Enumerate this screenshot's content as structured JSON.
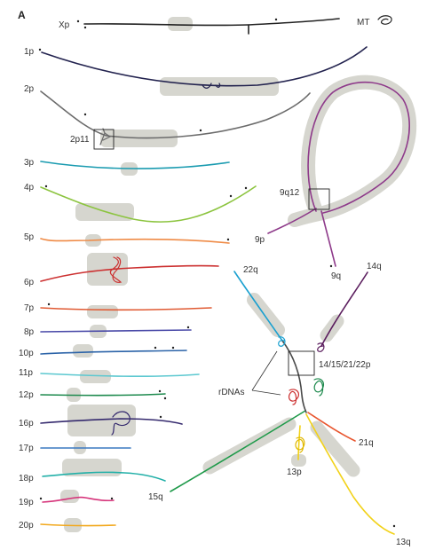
{
  "panel_label": "A",
  "colors": {
    "highlight": "#d6d6cf",
    "X": "#222222",
    "1": "#23234f",
    "2": "#6b6b6b",
    "3": "#1a9bb0",
    "4": "#8cc43f",
    "5": "#ef8a45",
    "6": "#cc3030",
    "7": "#e05a33",
    "8": "#4a4aa8",
    "9": "#8e3a8a",
    "10": "#2b63a8",
    "11": "#5cc8d0",
    "12": "#1e8a4e",
    "13": "#f2d21a",
    "14": "#5b1e5e",
    "15": "#1f9a4a",
    "16": "#352a6e",
    "17": "#3a78c0",
    "18": "#22b0a8",
    "19": "#d6337a",
    "20": "#f2a81c",
    "21": "#e8552e",
    "22": "#1aa0d0"
  },
  "labels": {
    "xp": "Xp",
    "mt": "MT",
    "p1": "1p",
    "p2": "2p",
    "p2p11": "2p11",
    "p3": "3p",
    "p4": "4p",
    "p5": "5p",
    "p6": "6p",
    "p7": "7p",
    "p8": "8p",
    "p10": "10p",
    "p11": "11p",
    "p12": "12p",
    "p16": "16p",
    "p17": "17p",
    "p18": "18p",
    "p19": "19p",
    "p20": "20p",
    "q9q12": "9q12",
    "p9": "9p",
    "q9": "9q",
    "q14": "14q",
    "q22": "22q",
    "q15": "15q",
    "q21": "21q",
    "p13": "13p",
    "q13": "13q",
    "rdnas": "rDNAs",
    "acro": "14/15/21/22p"
  }
}
